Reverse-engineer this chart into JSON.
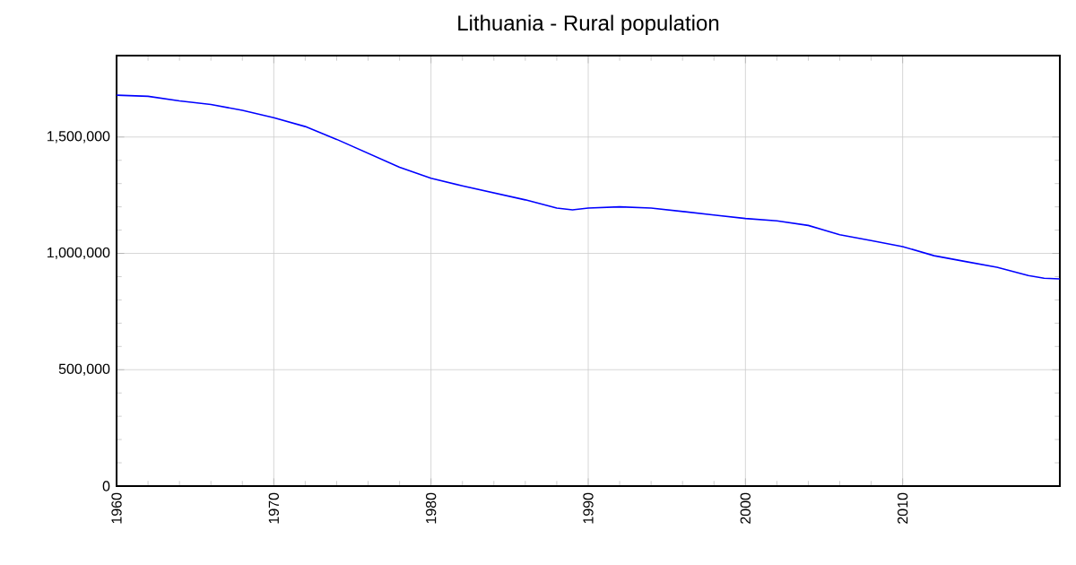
{
  "chart_data": {
    "type": "line",
    "title": "Lithuania - Rural population",
    "x": [
      1960,
      1962,
      1964,
      1966,
      1968,
      1970,
      1972,
      1974,
      1976,
      1978,
      1980,
      1982,
      1984,
      1986,
      1988,
      1989,
      1990,
      1992,
      1994,
      1996,
      1998,
      2000,
      2002,
      2004,
      2006,
      2008,
      2010,
      2012,
      2014,
      2016,
      2018,
      2019,
      2020
    ],
    "series": [
      {
        "color": "#0000ff",
        "values": [
          1680000,
          1675000,
          1655000,
          1640000,
          1615000,
          1583000,
          1545000,
          1490000,
          1430000,
          1370000,
          1323000,
          1290000,
          1260000,
          1230000,
          1195000,
          1187000,
          1195000,
          1200000,
          1195000,
          1180000,
          1165000,
          1150000,
          1140000,
          1120000,
          1080000,
          1055000,
          1029000,
          990000,
          965000,
          940000,
          905000,
          893000,
          890000
        ]
      }
    ],
    "xlim": [
      1960,
      2020
    ],
    "ylim": [
      0,
      1850000
    ],
    "xticks": [
      1960,
      1970,
      1980,
      1990,
      2000,
      2010
    ],
    "yticks": [
      {
        "value": 0,
        "label": "0"
      },
      {
        "value": 500000,
        "label": "500,000"
      },
      {
        "value": 1000000,
        "label": "1,000,000"
      },
      {
        "value": 1500000,
        "label": "1,500,000"
      }
    ],
    "grid": true,
    "marker": "none",
    "line_style": "solid"
  }
}
